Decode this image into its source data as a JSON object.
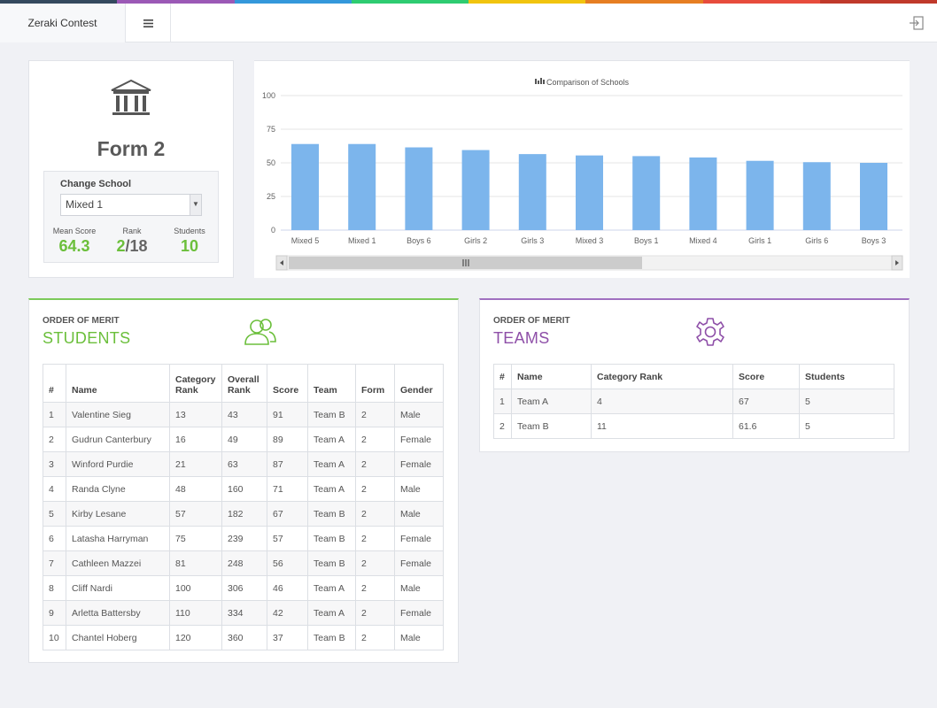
{
  "colors": {
    "topstrip": [
      "#34495e",
      "#9b59b6",
      "#3498db",
      "#2ecc71",
      "#f1c40f",
      "#e67e22",
      "#e74c3c",
      "#c0392b"
    ],
    "accent_green": "#6bbf3b",
    "accent_purple": "#8e4fa8",
    "bar": "#7cb5ec"
  },
  "navbar": {
    "brand": "Zeraki Contest",
    "menu_icon": "hamburger-icon",
    "logout_icon": "sign-out-icon"
  },
  "form_panel": {
    "icon": "institution-icon",
    "title": "Form 2",
    "change_school_label": "Change School",
    "selected_school": "Mixed 1",
    "mean_score_label": "Mean Score",
    "mean_score": "64.3",
    "rank_label": "Rank",
    "rank_value": "2",
    "rank_sep": "/",
    "rank_total": "18",
    "students_label": "Students",
    "students_value": "10"
  },
  "chart_data": {
    "type": "bar",
    "title": "Comparison of Schools",
    "categories": [
      "Mixed 5",
      "Mixed 1",
      "Boys 6",
      "Girls 2",
      "Girls 3",
      "Mixed 3",
      "Boys 1",
      "Mixed 4",
      "Girls 1",
      "Girls 6",
      "Boys 3"
    ],
    "values": [
      64,
      64,
      61.5,
      59.5,
      56.5,
      55.5,
      55,
      54,
      51.5,
      50.5,
      50
    ],
    "ylim": [
      0,
      100
    ],
    "yticks": [
      0,
      25,
      50,
      75,
      100
    ],
    "xlabel": "",
    "ylabel": "",
    "grid": true,
    "scroll_handle_icon": "grip-lines-icon"
  },
  "students": {
    "small_title": "ORDER OF MERIT",
    "big_title": "STUDENTS",
    "icon": "users-icon",
    "headers": [
      "#",
      "Name",
      "Category Rank",
      "Overall Rank",
      "Score",
      "Team",
      "Form",
      "Gender"
    ],
    "rows": [
      [
        "1",
        "Valentine Sieg",
        "13",
        "43",
        "91",
        "Team B",
        "2",
        "Male"
      ],
      [
        "2",
        "Gudrun Canterbury",
        "16",
        "49",
        "89",
        "Team A",
        "2",
        "Female"
      ],
      [
        "3",
        "Winford Purdie",
        "21",
        "63",
        "87",
        "Team A",
        "2",
        "Female"
      ],
      [
        "4",
        "Randa Clyne",
        "48",
        "160",
        "71",
        "Team A",
        "2",
        "Male"
      ],
      [
        "5",
        "Kirby Lesane",
        "57",
        "182",
        "67",
        "Team B",
        "2",
        "Male"
      ],
      [
        "6",
        "Latasha Harryman",
        "75",
        "239",
        "57",
        "Team B",
        "2",
        "Female"
      ],
      [
        "7",
        "Cathleen Mazzei",
        "81",
        "248",
        "56",
        "Team B",
        "2",
        "Female"
      ],
      [
        "8",
        "Cliff Nardi",
        "100",
        "306",
        "46",
        "Team A",
        "2",
        "Male"
      ],
      [
        "9",
        "Arletta Battersby",
        "110",
        "334",
        "42",
        "Team A",
        "2",
        "Female"
      ],
      [
        "10",
        "Chantel Hoberg",
        "120",
        "360",
        "37",
        "Team B",
        "2",
        "Male"
      ]
    ]
  },
  "teams": {
    "small_title": "ORDER OF MERIT",
    "big_title": "TEAMS",
    "icon": "cog-icon",
    "headers": [
      "#",
      "Name",
      "Category Rank",
      "Score",
      "Students"
    ],
    "rows": [
      [
        "1",
        "Team A",
        "4",
        "67",
        "5"
      ],
      [
        "2",
        "Team B",
        "11",
        "61.6",
        "5"
      ]
    ]
  }
}
